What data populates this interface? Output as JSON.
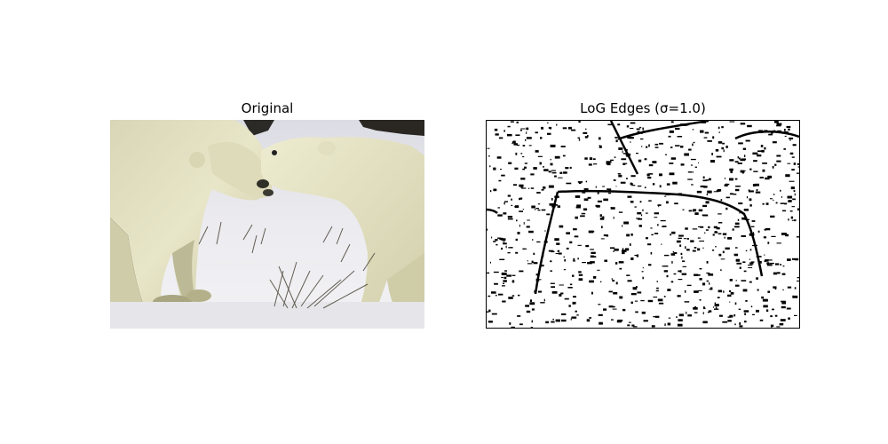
{
  "panels": [
    {
      "title": "Original",
      "subject": "two polar bears nuzzling on snowy tundra"
    },
    {
      "title": "LoG Edges (σ=1.0)",
      "subject": "black-on-white Laplacian of Gaussian edge map of the same scene"
    }
  ],
  "colors": {
    "background": "#ffffff",
    "fur": "#e6e3c2",
    "fur_shadow": "#b8b592",
    "snow": "#eeeef2",
    "dark_bg": "#2a2a2a",
    "edge": "#000000"
  }
}
